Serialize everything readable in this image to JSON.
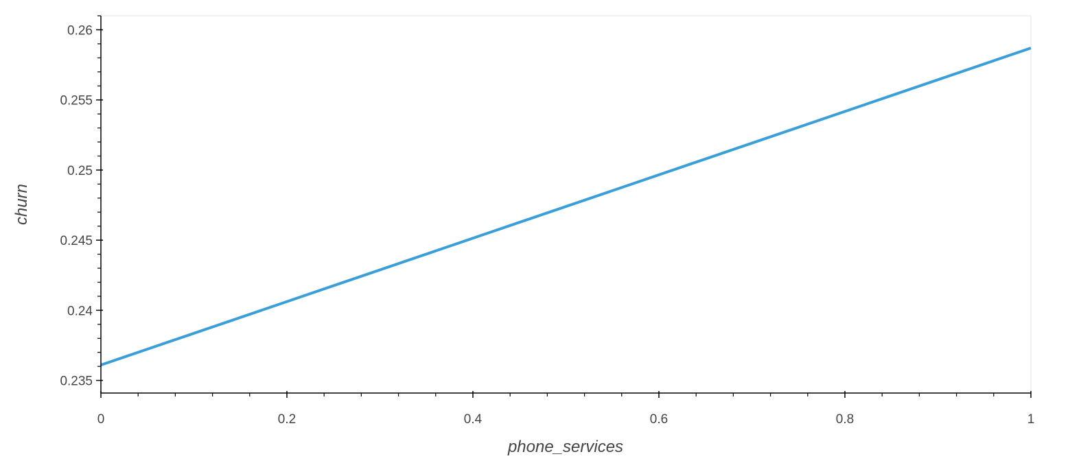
{
  "chart_data": {
    "type": "line",
    "title": "",
    "xlabel": "phone_services",
    "ylabel": "churn",
    "xlim": [
      0,
      1
    ],
    "ylim": [
      0.2341,
      0.261
    ],
    "grid": false,
    "x_ticks": [
      0,
      0.2,
      0.4,
      0.6,
      0.8,
      1
    ],
    "x_tick_labels": [
      "0",
      "0.2",
      "0.4",
      "0.6",
      "0.8",
      "1"
    ],
    "y_ticks": [
      0.235,
      0.24,
      0.245,
      0.25,
      0.255,
      0.26
    ],
    "y_tick_labels": [
      "0.235",
      "0.24",
      "0.245",
      "0.25",
      "0.255",
      "0.26"
    ],
    "series": [
      {
        "name": "churn",
        "color": "#3a9fd8",
        "x": [
          0,
          1
        ],
        "y": [
          0.2361,
          0.2587
        ]
      }
    ]
  }
}
